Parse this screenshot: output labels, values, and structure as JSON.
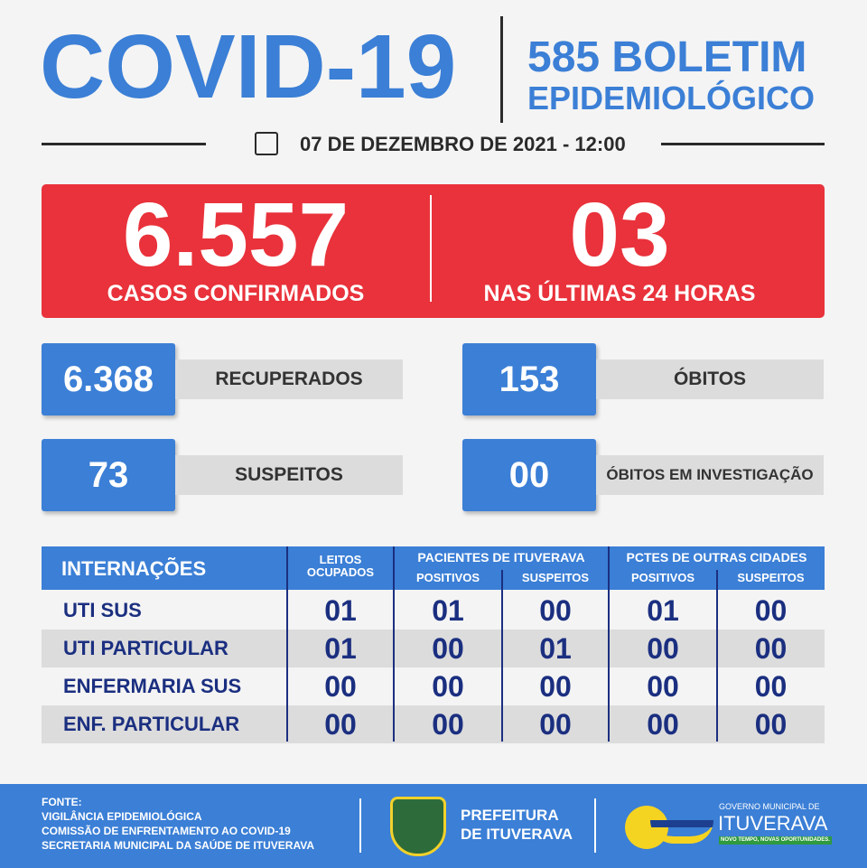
{
  "header": {
    "title": "COVID-19",
    "bulletin_line1": "585 BOLETIM",
    "bulletin_line2": "EPIDEMIOLÓGICO",
    "date": "07 DE DEZEMBRO DE 2021 - 12:00",
    "date_icon": "calendar-clock-icon"
  },
  "confirmed": {
    "value": "6.557",
    "label": "CASOS CONFIRMADOS",
    "last24_value": "03",
    "last24_label": "NAS ÚLTIMAS 24 HORAS"
  },
  "stats": [
    {
      "value": "6.368",
      "label": "RECUPERADOS"
    },
    {
      "value": "153",
      "label": "ÓBITOS"
    },
    {
      "value": "73",
      "label": "SUSPEITOS"
    },
    {
      "value": "00",
      "label": "ÓBITOS EM INVESTIGAÇÃO"
    }
  ],
  "table": {
    "title": "INTERNAÇÕES",
    "col_leitos": "LEITOS OCUPADOS",
    "group1": "PACIENTES DE ITUVERAVA",
    "group2": "PCTES DE OUTRAS CIDADES",
    "positivos": "POSITIVOS",
    "suspeitos": "SUSPEITOS",
    "rows": [
      {
        "label": "UTI SUS",
        "values": [
          "01",
          "01",
          "00",
          "01",
          "00"
        ]
      },
      {
        "label": "UTI PARTICULAR",
        "values": [
          "01",
          "00",
          "01",
          "00",
          "00"
        ]
      },
      {
        "label": "ENFERMARIA SUS",
        "values": [
          "00",
          "00",
          "00",
          "00",
          "00"
        ]
      },
      {
        "label": "ENF. PARTICULAR",
        "values": [
          "00",
          "00",
          "00",
          "00",
          "00"
        ]
      }
    ]
  },
  "footer": {
    "sources": [
      "FONTE:",
      "VIGILÂNCIA EPIDEMIOLÓGICA",
      "COMISSÃO DE ENFRENTAMENTO AO COVID-19",
      "SECRETARIA MUNICIPAL DA SAÚDE DE ITUVERAVA"
    ],
    "prefeitura": [
      "PREFEITURA",
      "DE ITUVERAVA"
    ],
    "gov_line1": "GOVERNO MUNICIPAL DE",
    "gov_name": "ITUVERAVA",
    "gov_slogan": "NOVO TEMPO, NOVAS OPORTUNIDADES."
  },
  "colors": {
    "blue": "#3b7fd6",
    "red": "#e9323b",
    "navy": "#1b2f80",
    "gray": "#dcdcdc"
  }
}
